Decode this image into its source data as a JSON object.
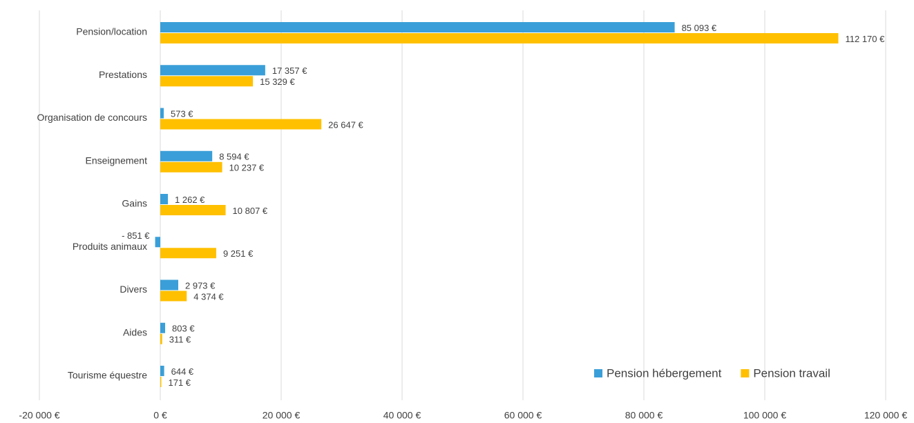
{
  "chart_data": {
    "type": "bar",
    "orientation": "horizontal",
    "categories": [
      "Pension/location",
      "Prestations",
      "Organisation de concours",
      "Enseignement",
      "Gains",
      "Produits animaux",
      "Divers",
      "Aides",
      "Tourisme équestre"
    ],
    "series": [
      {
        "name": "Pension hébergement",
        "color": "#3a9fd8",
        "values": [
          85093,
          17357,
          573,
          8594,
          1262,
          -851,
          2973,
          803,
          644
        ],
        "value_labels": [
          "85 093 €",
          "17 357 €",
          "573 €",
          "8 594 €",
          "1 262 €",
          "- 851 €",
          "2 973 €",
          "803 €",
          "644 €"
        ]
      },
      {
        "name": "Pension travail",
        "color": "#ffc000",
        "values": [
          112170,
          15329,
          26647,
          10237,
          10807,
          9251,
          4374,
          311,
          171
        ],
        "value_labels": [
          "112 170 €",
          "15 329 €",
          "26 647 €",
          "10 237 €",
          "10 807 €",
          "9 251 €",
          "4 374 €",
          "311 €",
          "171 €"
        ]
      }
    ],
    "xlim": [
      -20000,
      120000
    ],
    "xticks": [
      {
        "value": -20000,
        "label": "-20 000 €"
      },
      {
        "value": 0,
        "label": "0 €"
      },
      {
        "value": 20000,
        "label": "20 000 €"
      },
      {
        "value": 40000,
        "label": "40 000 €"
      },
      {
        "value": 60000,
        "label": "60 000 €"
      },
      {
        "value": 80000,
        "label": "80 000 €"
      },
      {
        "value": 100000,
        "label": "100 000 €"
      },
      {
        "value": 120000,
        "label": "120 000 €"
      }
    ],
    "grid": true,
    "legend": "lower right"
  }
}
